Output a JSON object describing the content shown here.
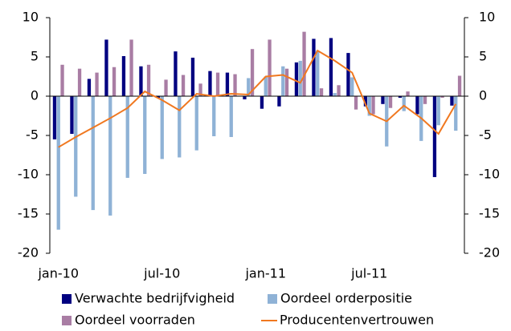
{
  "chart_data": {
    "type": "bar",
    "categories": [
      "jan-10",
      null,
      null,
      null,
      null,
      null,
      "jul-10",
      null,
      null,
      null,
      null,
      null,
      "jan-11",
      null,
      null,
      null,
      null,
      null,
      "jul-11",
      null,
      null,
      null,
      null,
      null
    ],
    "series": [
      {
        "name": "Verwachte bedrijfvigheid",
        "type": "bar",
        "color": "#000080",
        "values": [
          -5.5,
          -4.8,
          2.2,
          7.2,
          5.1,
          3.8,
          -0.2,
          5.7,
          4.9,
          3.2,
          3.0,
          -0.4,
          -1.6,
          -1.3,
          4.3,
          7.3,
          7.4,
          5.5,
          -1.3,
          -1.0,
          -0.2,
          -2.3,
          -10.3,
          -1.2
        ]
      },
      {
        "name": "Oordeel orderpositie",
        "type": "bar",
        "color": "#8fb2d6",
        "values": [
          -17,
          -12.8,
          -14.5,
          -15.2,
          -10.4,
          -9.9,
          -8.0,
          -7.8,
          -6.9,
          -5.1,
          -5.2,
          2.3,
          2.5,
          3.8,
          4.5,
          5.8,
          0.4,
          2.4,
          -2.5,
          -6.4,
          -1.9,
          -5.7,
          -3.7,
          -4.4
        ]
      },
      {
        "name": "Oordeel voorraden",
        "type": "bar",
        "color": "#a97da4",
        "values": [
          4,
          3.5,
          3,
          3.7,
          7.2,
          4,
          2.1,
          2.7,
          1.6,
          3,
          2.8,
          6,
          7.2,
          3.5,
          8.2,
          1,
          1.4,
          -1.7,
          -2.3,
          -1.5,
          0.6,
          -1,
          -0.2,
          2.6
        ]
      },
      {
        "name": "Producentenvertrouwen",
        "type": "line",
        "color": "#f07820",
        "values": [
          -6.5,
          -5.2,
          -4,
          -2.8,
          -1.5,
          0.6,
          -0.5,
          -1.8,
          0.3,
          0,
          0.3,
          0.2,
          2.5,
          2.7,
          1.7,
          5.8,
          4.5,
          3,
          -2.2,
          -3.2,
          -1.2,
          -2.8,
          -4.8,
          -1
        ]
      }
    ],
    "ylim": [
      -20,
      10
    ],
    "yticks": [
      -20,
      -15,
      -10,
      -5,
      0,
      5,
      10
    ],
    "y2lim": [
      -20,
      10
    ],
    "y2ticks": [
      -20,
      -15,
      -10,
      -5,
      0,
      5,
      10
    ]
  }
}
